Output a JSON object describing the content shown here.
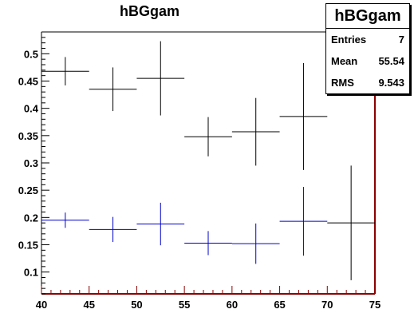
{
  "chart_data": {
    "type": "scatter",
    "title": "hBGgam",
    "xlim": [
      40,
      75
    ],
    "ylim": [
      0.06,
      0.54
    ],
    "x_ticks": [
      "40",
      "45",
      "50",
      "55",
      "60",
      "65",
      "70",
      "75"
    ],
    "y_ticks": [
      "0.1",
      "0.15",
      "0.2",
      "0.25",
      "0.3",
      "0.35",
      "0.4",
      "0.45",
      "0.5"
    ],
    "series": [
      {
        "color": "#000000",
        "points": [
          {
            "x": 42.5,
            "xerr": 2.5,
            "y": 0.468,
            "yerr": 0.026
          },
          {
            "x": 47.5,
            "xerr": 2.5,
            "y": 0.435,
            "yerr": 0.04
          },
          {
            "x": 52.5,
            "xerr": 2.5,
            "y": 0.455,
            "yerr": 0.068
          },
          {
            "x": 57.5,
            "xerr": 2.5,
            "y": 0.348,
            "yerr": 0.036
          },
          {
            "x": 62.5,
            "xerr": 2.5,
            "y": 0.357,
            "yerr": 0.062
          },
          {
            "x": 67.5,
            "xerr": 2.5,
            "y": 0.385,
            "yerr": 0.098
          },
          {
            "x": 72.5,
            "xerr": 2.5,
            "y": 0.19,
            "yerr": 0.105
          }
        ]
      },
      {
        "color": "#0000cc",
        "points": [
          {
            "x": 42.5,
            "xerr": 2.5,
            "y": 0.195,
            "yerr": 0.014
          },
          {
            "x": 47.5,
            "xerr": 2.5,
            "y": 0.178,
            "yerr": 0.023
          },
          {
            "x": 52.5,
            "xerr": 2.5,
            "y": 0.188,
            "yerr": 0.039
          },
          {
            "x": 57.5,
            "xerr": 2.5,
            "y": 0.153,
            "yerr": 0.022
          },
          {
            "x": 62.5,
            "xerr": 2.5,
            "y": 0.152,
            "yerr": 0.037
          },
          {
            "x": 67.5,
            "xerr": 2.5,
            "y": 0.193,
            "yerr": 0.063
          }
        ]
      }
    ],
    "grid": false,
    "stats_box": {
      "title": "hBGgam",
      "rows": [
        {
          "label": "Entries",
          "value": "7"
        },
        {
          "label": "Mean",
          "value": "55.54"
        },
        {
          "label": "RMS",
          "value": "9.543"
        }
      ]
    },
    "colors": {
      "axis": "#000000",
      "frame_right": "#8b0000"
    }
  }
}
